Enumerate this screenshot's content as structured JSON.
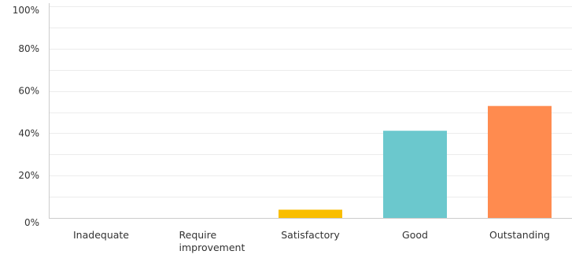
{
  "chart_data": {
    "type": "bar",
    "categories": [
      [
        "Inadequate"
      ],
      [
        "Require",
        "improvement"
      ],
      [
        "Satisfactory"
      ],
      [
        "Good"
      ],
      [
        "Outstanding"
      ]
    ],
    "values": [
      0,
      0,
      3.9,
      41.2,
      52.9
    ],
    "colors": [
      "#00bf6f",
      "#507cb6",
      "#f9be00",
      "#6bc8cd",
      "#ff8b4f"
    ],
    "ylim": [
      0,
      100
    ],
    "yticks": [
      "0%",
      "20%",
      "40%",
      "60%",
      "80%",
      "100%"
    ],
    "y_tick_values": [
      0,
      20,
      40,
      60,
      80,
      100
    ],
    "grid": true,
    "grid_color": "#ececec",
    "axis_color": "#cccccc",
    "title": "",
    "xlabel": "",
    "ylabel": ""
  }
}
